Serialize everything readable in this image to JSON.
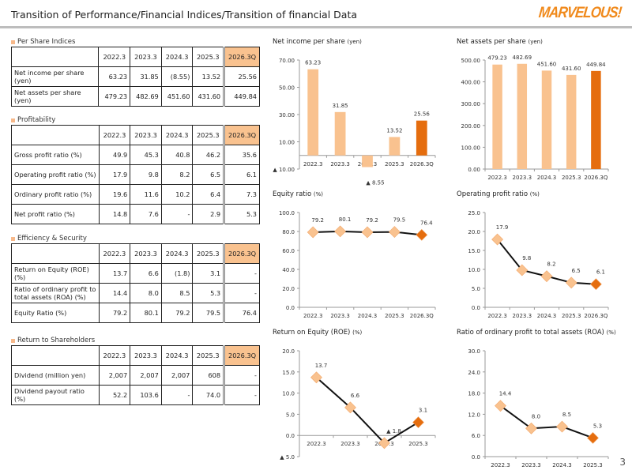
{
  "header": {
    "title": "Transition of Performance/Financial Indices/Transition of financial Data",
    "logo": "MARVELOUS!"
  },
  "page_number": "3",
  "colors": {
    "light_orange": "#f9c28f",
    "dark_orange": "#e56d0e",
    "square": "#f7b98b"
  },
  "years": [
    "2022.3",
    "2023.3",
    "2024.3",
    "2025.3",
    "2026.3Q"
  ],
  "tables": {
    "per_share": {
      "label": "Per Share Indices",
      "rows": [
        {
          "name": "Net income per share (yen)",
          "values": [
            "63.23",
            "31.85",
            "(8.55)",
            "13.52",
            "25.56"
          ]
        },
        {
          "name": "Net assets per share (yen)",
          "values": [
            "479.23",
            "482.69",
            "451.60",
            "431.60",
            "449.84"
          ]
        }
      ]
    },
    "profitability": {
      "label": "Profitability",
      "rows": [
        {
          "name": "Gross profit ratio (%)",
          "values": [
            "49.9",
            "45.3",
            "40.8",
            "46.2",
            "35.6"
          ]
        },
        {
          "name": "Operating profit ratio (%)",
          "values": [
            "17.9",
            "9.8",
            "8.2",
            "6.5",
            "6.1"
          ]
        },
        {
          "name": "Ordinary profit ratio (%)",
          "values": [
            "19.6",
            "11.6",
            "10.2",
            "6.4",
            "7.3"
          ]
        },
        {
          "name": "Net profit ratio (%)",
          "values": [
            "14.8",
            "7.6",
            "-",
            "2.9",
            "5.3"
          ]
        }
      ]
    },
    "efficiency": {
      "label": "Efficiency & Security",
      "rows": [
        {
          "name": "Return on Equity  (ROE) (%)",
          "values": [
            "13.7",
            "6.6",
            "(1.8)",
            "3.1",
            "-"
          ]
        },
        {
          "name": "Ratio of ordinary profit to total assets (ROA) (%)",
          "values": [
            "14.4",
            "8.0",
            "8.5",
            "5.3",
            "-"
          ]
        },
        {
          "name": "Equity Ratio (%)",
          "values": [
            "79.2",
            "80.1",
            "79.2",
            "79.5",
            "76.4"
          ]
        }
      ]
    },
    "shareholders": {
      "label": "Return to Shareholders",
      "rows": [
        {
          "name": "Dividend (million yen)",
          "values": [
            "2,007",
            "2,007",
            "2,007",
            "608",
            "-"
          ]
        },
        {
          "name": "Dividend payout ratio (%)",
          "values": [
            "52.2",
            "103.6",
            "-",
            "74.0",
            "-"
          ]
        }
      ]
    }
  },
  "chart_data": [
    {
      "id": "nips",
      "type": "bar",
      "title": "Net income per share",
      "unit": "(yen)",
      "categories": [
        "2022.3",
        "2023.3",
        "2024.3",
        "2025.3",
        "2026.3Q"
      ],
      "values": [
        63.23,
        31.85,
        -8.55,
        13.52,
        25.56
      ],
      "data_labels": [
        "63.23",
        "31.85",
        "▲ 8.55",
        "13.52",
        "25.56"
      ],
      "highlight_last": true,
      "ylim": [
        -10,
        70
      ],
      "yticks": [
        -10,
        10,
        30,
        50,
        70
      ],
      "ytick_labels": [
        "▲ 10.00",
        "10.00",
        "30.00",
        "50.00",
        "70.00"
      ]
    },
    {
      "id": "naps",
      "type": "bar",
      "title": "Net assets per share",
      "unit": "(yen)",
      "categories": [
        "2022.3",
        "2023.3",
        "2024.3",
        "2025.3",
        "2026.3Q"
      ],
      "values": [
        479.23,
        482.69,
        451.6,
        431.6,
        449.84
      ],
      "data_labels": [
        "479.23",
        "482.69",
        "451.60",
        "431.60",
        "449.84"
      ],
      "highlight_last": true,
      "ylim": [
        0,
        500
      ],
      "yticks": [
        0,
        100,
        200,
        300,
        400,
        500
      ],
      "ytick_labels": [
        "0.00",
        "100.00",
        "200.00",
        "300.00",
        "400.00",
        "500.00"
      ]
    },
    {
      "id": "equity",
      "type": "line",
      "title": "Equity ratio",
      "unit": "(%)",
      "categories": [
        "2022.3",
        "2023.3",
        "2024.3",
        "2025.3",
        "2026.3Q"
      ],
      "values": [
        79.2,
        80.1,
        79.2,
        79.5,
        76.4
      ],
      "data_labels": [
        "79.2",
        "80.1",
        "79.2",
        "79.5",
        "76.4"
      ],
      "highlight_last": true,
      "ylim": [
        0,
        100
      ],
      "yticks": [
        0,
        20,
        40,
        60,
        80,
        100
      ],
      "ytick_labels": [
        "0.0",
        "20.0",
        "40.0",
        "60.0",
        "80.0",
        "100.0"
      ]
    },
    {
      "id": "opr",
      "type": "line",
      "title": "Operating profit ratio",
      "unit": "(%)",
      "categories": [
        "2022.3",
        "2023.3",
        "2024.3",
        "2025.3",
        "2026.3Q"
      ],
      "values": [
        17.9,
        9.8,
        8.2,
        6.5,
        6.1
      ],
      "data_labels": [
        "17.9",
        "9.8",
        "8.2",
        "6.5",
        "6.1"
      ],
      "highlight_last": true,
      "ylim": [
        0,
        25
      ],
      "yticks": [
        0,
        5,
        10,
        15,
        20,
        25
      ],
      "ytick_labels": [
        "0.0",
        "5.0",
        "10.0",
        "15.0",
        "20.0",
        "25.0"
      ]
    },
    {
      "id": "roe",
      "type": "line",
      "title": "Return on Equity (ROE)",
      "unit": "(%)",
      "categories": [
        "2022.3",
        "2023.3",
        "2024.3",
        "2025.3"
      ],
      "values": [
        13.7,
        6.6,
        -1.8,
        3.1
      ],
      "data_labels": [
        "13.7",
        "6.6",
        "▲ 1.8",
        "3.1"
      ],
      "highlight_last": true,
      "ylim": [
        -5,
        20
      ],
      "yticks": [
        -5,
        0,
        5,
        10,
        15,
        20
      ],
      "ytick_labels": [
        "▲ 5.0",
        "0.0",
        "5.0",
        "10.0",
        "15.0",
        "20.0"
      ]
    },
    {
      "id": "roa",
      "type": "line",
      "title": "Ratio of ordinary profit to total assets (ROA)",
      "unit": "(%)",
      "categories": [
        "2022.3",
        "2023.3",
        "2024.3",
        "2025.3"
      ],
      "values": [
        14.4,
        8.0,
        8.5,
        5.3
      ],
      "data_labels": [
        "14.4",
        "8.0",
        "8.5",
        "5.3"
      ],
      "highlight_last": true,
      "ylim": [
        0,
        30
      ],
      "yticks": [
        0,
        6,
        12,
        18,
        24,
        30
      ],
      "ytick_labels": [
        "0.0",
        "6.0",
        "12.0",
        "18.0",
        "24.0",
        "30.0"
      ]
    }
  ]
}
